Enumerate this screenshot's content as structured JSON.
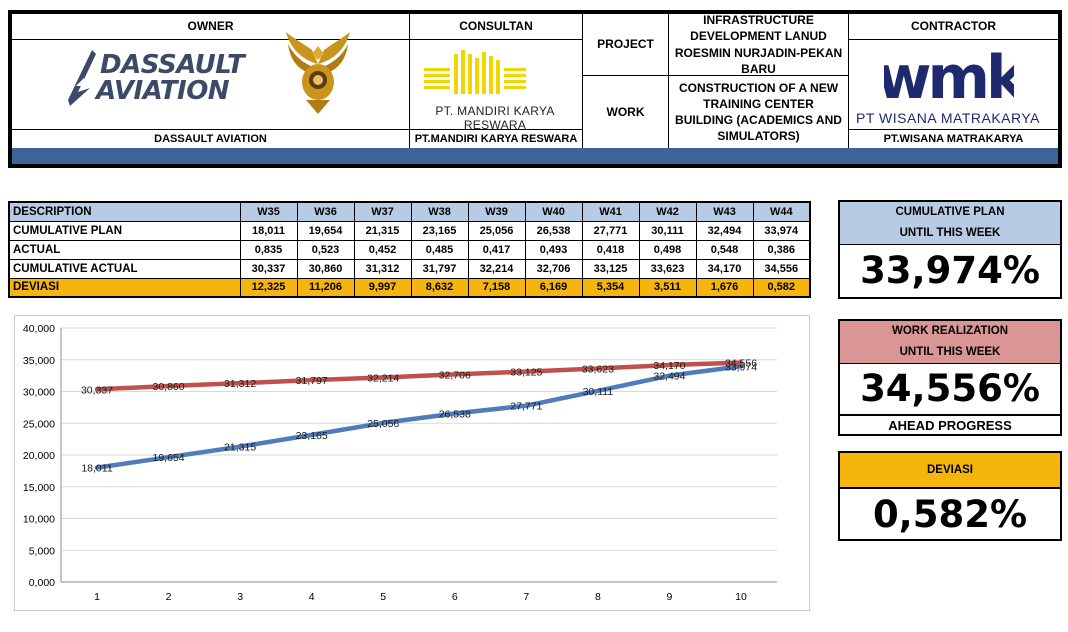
{
  "header": {
    "owner_label": "OWNER",
    "owner_logo_line1": "DASSAULT",
    "owner_logo_line2": "AVIATION",
    "owner_name": "DASSAULT AVIATION",
    "consultant_label": "CONSULTAN",
    "consultant_logo_text": "PT. MANDIRI KARYA RESWARA",
    "consultant_name": "PT.MANDIRI KARYA RESWARA",
    "project_label": "PROJECT",
    "project_value": "INFRASTRUCTURE DEVELOPMENT LANUD ROESMIN NURJADIN-PEKAN BARU",
    "work_label": "WORK",
    "work_value": "CONSTRUCTION OF A NEW TRAINING CENTER BUILDING (ACADEMICS AND SIMULATORS)",
    "contractor_label": "CONTRACTOR",
    "contractor_logo_mark": "wmk",
    "contractor_logo_text": "PT WISANA MATRAKARYA",
    "contractor_name": "PT.WISANA MATRAKARYA",
    "strip_color": "#3d6398"
  },
  "table": {
    "columns": [
      "DESCRIPTION",
      "W35",
      "W36",
      "W37",
      "W38",
      "W39",
      "W40",
      "W41",
      "W42",
      "W43",
      "W44"
    ],
    "rows": [
      {
        "label": "CUMULATIVE PLAN",
        "values": [
          "18,011",
          "19,654",
          "21,315",
          "23,165",
          "25,056",
          "26,538",
          "27,771",
          "30,111",
          "32,494",
          "33,974"
        ]
      },
      {
        "label": "ACTUAL",
        "values": [
          "0,835",
          "0,523",
          "0,452",
          "0,485",
          "0,417",
          "0,493",
          "0,418",
          "0,498",
          "0,548",
          "0,386"
        ]
      },
      {
        "label": "CUMULATIVE ACTUAL",
        "values": [
          "30,337",
          "30,860",
          "31,312",
          "31,797",
          "32,214",
          "32,706",
          "33,125",
          "33,623",
          "34,170",
          "34,556"
        ]
      },
      {
        "label": "DEVIASI",
        "values": [
          "12,325",
          "11,206",
          "9,997",
          "8,632",
          "7,158",
          "6,169",
          "5,354",
          "3,511",
          "1,676",
          "0,582"
        ]
      }
    ],
    "header_color": "#b8cbe4",
    "deviasi_color": "#f6b50d"
  },
  "chart_data": {
    "type": "line",
    "x": [
      1,
      2,
      3,
      4,
      5,
      6,
      7,
      8,
      9,
      10
    ],
    "ylim": [
      0,
      40
    ],
    "ytick_labels": [
      "0,000",
      "5,000",
      "10,000",
      "15,000",
      "20,000",
      "25,000",
      "30,000",
      "35,000",
      "40,000"
    ],
    "grid": true,
    "legend": "none",
    "series": [
      {
        "color": "#4f7cba",
        "values": [
          18.011,
          19.654,
          21.315,
          23.165,
          25.056,
          26.538,
          27.771,
          30.111,
          32.494,
          33.974
        ],
        "labels": [
          "18,011",
          "19,654",
          "21,315",
          "23,165",
          "25,056",
          "26,538",
          "27,771",
          "30,111",
          "32,494",
          "33,974"
        ]
      },
      {
        "color": "#c0504d",
        "values": [
          30.337,
          30.86,
          31.312,
          31.797,
          32.214,
          32.706,
          33.125,
          33.623,
          34.17,
          34.556
        ],
        "labels": [
          "30,337",
          "30,860",
          "31,312",
          "31,797",
          "32,214",
          "32,706",
          "33,125",
          "33,623",
          "34,170",
          "34,556"
        ]
      }
    ]
  },
  "panels": {
    "plan": {
      "title1": "CUMULATIVE PLAN",
      "title2": "UNTIL THIS WEEK",
      "value": "33,974%",
      "title_color": "#b8cbe4"
    },
    "realization": {
      "title1": "WORK REALIZATION",
      "title2": "UNTIL THIS WEEK",
      "value": "34,556%",
      "note": "AHEAD PROGRESS",
      "title_color": "#da9694"
    },
    "deviasi": {
      "title": "DEVIASI",
      "value": "0,582%",
      "title_color": "#f6b50d"
    }
  }
}
